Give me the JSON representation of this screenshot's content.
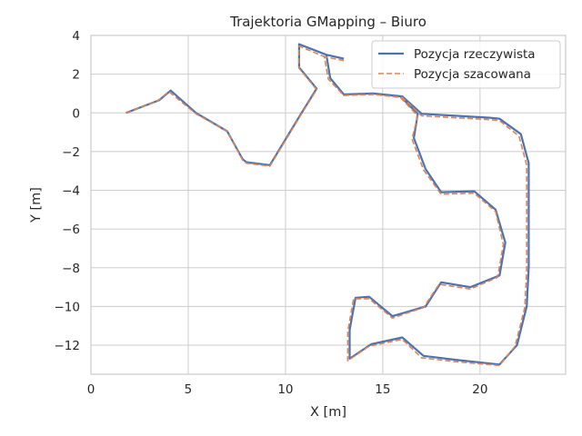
{
  "chart_data": {
    "type": "line",
    "title": "Trajektoria GMapping – Biuro",
    "xlabel": "X [m]",
    "ylabel": "Y [m]",
    "xlim": [
      0,
      24.4
    ],
    "ylim": [
      -13.5,
      4.0
    ],
    "xticks": [
      0,
      5,
      10,
      15,
      20
    ],
    "yticks": [
      4,
      2,
      0,
      -2,
      -4,
      -6,
      -8,
      -10,
      -12
    ],
    "grid": true,
    "legend_position": "top-right",
    "series": [
      {
        "name": "Pozycja rzeczywista",
        "color": "#4c72b0",
        "style": "solid",
        "x": [
          1.8,
          3.5,
          4.1,
          5.4,
          7.0,
          7.8,
          8.0,
          9.2,
          10.8,
          11.6,
          10.7,
          10.7,
          12.1,
          12.3,
          13.0,
          14.5,
          15.9,
          16.8,
          16.6,
          17.2,
          18.0,
          19.7,
          20.8,
          21.3,
          21.0,
          19.5,
          18.0,
          17.2,
          15.5,
          14.3,
          13.6,
          13.3,
          13.3,
          14.4,
          16.0,
          17.1,
          18.7,
          21.0,
          21.9,
          22.4,
          22.5,
          22.5,
          22.1,
          21.0,
          20.5,
          17.0,
          16.0,
          14.5,
          13.0,
          12.3,
          12.1,
          13.0
        ],
        "y": [
          0.0,
          0.65,
          1.15,
          0.0,
          -0.95,
          -2.4,
          -2.55,
          -2.7,
          -0.05,
          1.25,
          2.35,
          3.55,
          3.0,
          1.8,
          0.95,
          1.0,
          0.85,
          -0.05,
          -1.3,
          -2.9,
          -4.1,
          -4.05,
          -5.0,
          -6.7,
          -8.4,
          -9.0,
          -8.75,
          -10.0,
          -10.5,
          -9.5,
          -9.55,
          -11.2,
          -12.7,
          -11.95,
          -11.6,
          -12.55,
          -12.75,
          -13.0,
          -12.0,
          -10.0,
          -8.0,
          -2.6,
          -1.1,
          -0.3,
          -0.25,
          -0.05,
          0.85,
          1.0,
          0.95,
          1.8,
          3.0,
          2.8
        ]
      },
      {
        "name": "Pozycja szacowana",
        "color": "#dd8452",
        "style": "dashed",
        "x": [
          1.8,
          3.4,
          4.0,
          5.4,
          7.0,
          7.8,
          8.0,
          9.2,
          10.8,
          11.6,
          10.7,
          10.7,
          12.0,
          12.2,
          13.0,
          14.5,
          15.9,
          16.8,
          16.5,
          17.1,
          18.0,
          19.7,
          20.8,
          21.2,
          20.9,
          19.5,
          17.9,
          17.1,
          15.5,
          14.3,
          13.5,
          13.2,
          13.2,
          14.3,
          16.0,
          17.0,
          18.7,
          21.0,
          21.8,
          22.3,
          22.4,
          22.4,
          22.0,
          21.0,
          20.5,
          17.0,
          16.0,
          14.5,
          13.0,
          12.2,
          12.0,
          13.0
        ],
        "y": [
          0.0,
          0.6,
          1.1,
          -0.05,
          -0.95,
          -2.45,
          -2.6,
          -2.75,
          -0.1,
          1.2,
          2.3,
          3.45,
          2.9,
          1.75,
          0.9,
          0.95,
          0.8,
          -0.15,
          -1.35,
          -2.95,
          -4.2,
          -4.15,
          -5.1,
          -6.8,
          -8.5,
          -9.1,
          -8.85,
          -10.05,
          -10.6,
          -9.6,
          -9.6,
          -11.3,
          -12.8,
          -12.05,
          -11.7,
          -12.65,
          -12.85,
          -13.05,
          -12.05,
          -10.05,
          -8.1,
          -2.7,
          -1.2,
          -0.4,
          -0.35,
          -0.15,
          0.8,
          0.95,
          0.9,
          1.75,
          2.9,
          2.7
        ]
      }
    ]
  }
}
